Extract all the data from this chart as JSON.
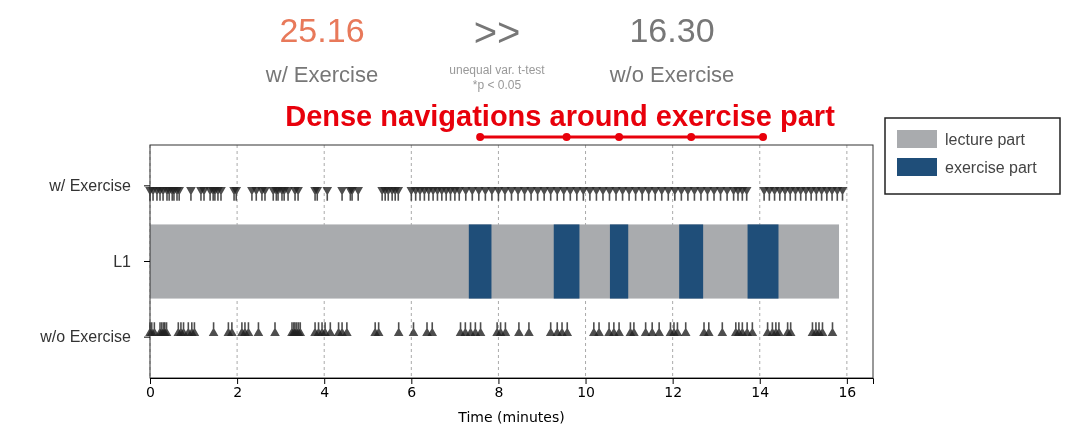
{
  "chart_data": {
    "type": "scatter",
    "orientation": "horizontal",
    "xlabel": "Time (minutes)",
    "xlim": [
      0,
      16.6
    ],
    "xticks": [
      0,
      2,
      4,
      6,
      8,
      10,
      12,
      14,
      16
    ],
    "categories": [
      "w/ Exercise",
      "L1",
      "w/o Exercise"
    ],
    "grid": "x",
    "legend": "top right",
    "marker": "triangle",
    "annotations": [
      "25.16",
      "w/ Exercise",
      ">>",
      "unequal var. t-test",
      "*p < 0.05",
      "16.30",
      "w/o Exercise",
      "Dense navigations around exercise part"
    ],
    "bands": [
      {
        "axis": "x",
        "from": 0,
        "to": 15.82,
        "label": "lecture part",
        "color": "#a9abae"
      },
      {
        "axis": "x",
        "from": 7.32,
        "to": 7.84,
        "label": "exercise part",
        "color": "#1f4e79"
      },
      {
        "axis": "x",
        "from": 9.27,
        "to": 9.86,
        "color": "#1f4e79"
      },
      {
        "axis": "x",
        "from": 10.56,
        "to": 10.98,
        "color": "#1f4e79"
      },
      {
        "axis": "x",
        "from": 12.15,
        "to": 12.7,
        "color": "#1f4e79"
      },
      {
        "axis": "x",
        "from": 13.72,
        "to": 14.43,
        "color": "#1f4e79"
      }
    ],
    "series": [
      {
        "color": "#222222",
        "values": [
          0,
          0.07,
          0.16,
          0.23,
          0.3,
          0.39,
          0.44,
          0.51,
          0.55,
          0.62,
          0.67,
          0.94,
          1.17,
          1.24,
          1.38,
          1.45,
          1.49,
          1.56,
          1.63,
          1.93,
          1.98,
          2.34,
          2.44,
          2.57,
          2.64,
          2.83,
          2.9,
          2.94,
          3.03,
          3.08,
          3.17,
          3.33,
          3.4,
          3.79,
          3.84,
          4.07,
          4.41,
          4.6,
          4.64,
          4.78,
          5.33,
          5.4,
          5.47,
          5.56,
          5.63,
          5.7,
          6.0,
          6.1,
          6.2,
          6.3,
          6.4,
          6.5,
          6.6,
          6.7,
          6.8,
          6.9,
          7.0,
          7.1,
          7.25,
          7.4,
          7.55,
          7.7,
          7.85,
          8.0,
          8.15,
          8.3,
          8.45,
          8.6,
          8.75,
          8.9,
          9.05,
          9.2,
          9.35,
          9.5,
          9.65,
          9.8,
          9.95,
          10.1,
          10.25,
          10.4,
          10.55,
          10.7,
          10.85,
          11.0,
          11.15,
          11.3,
          11.45,
          11.6,
          11.75,
          11.9,
          12.05,
          12.2,
          12.35,
          12.5,
          12.65,
          12.8,
          12.95,
          13.1,
          13.25,
          13.4,
          13.5,
          13.6,
          13.7,
          14.1,
          14.22,
          14.34,
          14.46,
          14.58,
          14.7,
          14.82,
          14.94,
          15.06,
          15.18,
          15.3,
          15.42,
          15.54,
          15.66,
          15.78,
          15.9
        ],
        "x": [
          "w/ Exercise",
          "w/ Exercise",
          "w/ Exercise",
          "w/ Exercise",
          "w/ Exercise",
          "w/ Exercise",
          "w/ Exercise",
          "w/ Exercise",
          "w/ Exercise",
          "w/ Exercise",
          "w/ Exercise",
          "w/ Exercise",
          "w/ Exercise",
          "w/ Exercise",
          "w/ Exercise",
          "w/ Exercise",
          "w/ Exercise",
          "w/ Exercise",
          "w/ Exercise",
          "w/ Exercise",
          "w/ Exercise",
          "w/ Exercise",
          "w/ Exercise",
          "w/ Exercise",
          "w/ Exercise",
          "w/ Exercise",
          "w/ Exercise",
          "w/ Exercise",
          "w/ Exercise",
          "w/ Exercise",
          "w/ Exercise",
          "w/ Exercise",
          "w/ Exercise",
          "w/ Exercise",
          "w/ Exercise",
          "w/ Exercise",
          "w/ Exercise",
          "w/ Exercise",
          "w/ Exercise",
          "w/ Exercise",
          "w/ Exercise",
          "w/ Exercise",
          "w/ Exercise",
          "w/ Exercise",
          "w/ Exercise",
          "w/ Exercise",
          "w/ Exercise",
          "w/ Exercise",
          "w/ Exercise",
          "w/ Exercise",
          "w/ Exercise",
          "w/ Exercise",
          "w/ Exercise",
          "w/ Exercise",
          "w/ Exercise",
          "w/ Exercise",
          "w/ Exercise",
          "w/ Exercise",
          "w/ Exercise",
          "w/ Exercise",
          "w/ Exercise",
          "w/ Exercise",
          "w/ Exercise",
          "w/ Exercise",
          "w/ Exercise",
          "w/ Exercise",
          "w/ Exercise",
          "w/ Exercise",
          "w/ Exercise",
          "w/ Exercise",
          "w/ Exercise",
          "w/ Exercise",
          "w/ Exercise",
          "w/ Exercise",
          "w/ Exercise",
          "w/ Exercise",
          "w/ Exercise",
          "w/ Exercise",
          "w/ Exercise",
          "w/ Exercise",
          "w/ Exercise",
          "w/ Exercise",
          "w/ Exercise",
          "w/ Exercise",
          "w/ Exercise",
          "w/ Exercise",
          "w/ Exercise",
          "w/ Exercise",
          "w/ Exercise",
          "w/ Exercise",
          "w/ Exercise",
          "w/ Exercise",
          "w/ Exercise",
          "w/ Exercise",
          "w/ Exercise",
          "w/ Exercise",
          "w/ Exercise",
          "w/ Exercise",
          "w/ Exercise",
          "w/ Exercise",
          "w/ Exercise",
          "w/ Exercise",
          "w/ Exercise",
          "w/ Exercise",
          "w/ Exercise",
          "w/ Exercise",
          "w/ Exercise",
          "w/ Exercise",
          "w/ Exercise",
          "w/ Exercise",
          "w/ Exercise",
          "w/ Exercise",
          "w/ Exercise",
          "w/ Exercise",
          "w/ Exercise",
          "w/ Exercise",
          "w/ Exercise",
          "w/ Exercise",
          "w/ Exercise"
        ]
      },
      {
        "color": "#222222",
        "values": [
          0,
          0.04,
          0.1,
          0.23,
          0.27,
          0.31,
          0.34,
          0.38,
          0.65,
          0.71,
          0.77,
          0.88,
          0.96,
          1.02,
          1.46,
          1.8,
          1.88,
          2.11,
          2.18,
          2.26,
          2.49,
          2.87,
          3.26,
          3.3,
          3.33,
          3.37,
          3.41,
          3.45,
          3.79,
          3.87,
          3.95,
          4.02,
          4.14,
          4.33,
          4.41,
          4.52,
          5.17,
          5.25,
          5.71,
          6.05,
          6.36,
          6.48,
          7.13,
          7.24,
          7.36,
          7.47,
          7.59,
          7.97,
          8.05,
          8.16,
          8.47,
          8.7,
          9.2,
          9.35,
          9.46,
          9.58,
          10.19,
          10.31,
          10.54,
          10.65,
          10.77,
          11.03,
          11.11,
          11.38,
          11.53,
          11.69,
          11.95,
          12.03,
          12.11,
          12.3,
          12.72,
          12.83,
          13.14,
          13.45,
          13.52,
          13.6,
          13.71,
          13.83,
          14.18,
          14.29,
          14.37,
          14.44,
          14.64,
          14.71,
          15.21,
          15.29,
          15.36,
          15.44,
          15.67
        ],
        "x": [
          "w/o Exercise",
          "w/o Exercise",
          "w/o Exercise",
          "w/o Exercise",
          "w/o Exercise",
          "w/o Exercise",
          "w/o Exercise",
          "w/o Exercise",
          "w/o Exercise",
          "w/o Exercise",
          "w/o Exercise",
          "w/o Exercise",
          "w/o Exercise",
          "w/o Exercise",
          "w/o Exercise",
          "w/o Exercise",
          "w/o Exercise",
          "w/o Exercise",
          "w/o Exercise",
          "w/o Exercise",
          "w/o Exercise",
          "w/o Exercise",
          "w/o Exercise",
          "w/o Exercise",
          "w/o Exercise",
          "w/o Exercise",
          "w/o Exercise",
          "w/o Exercise",
          "w/o Exercise",
          "w/o Exercise",
          "w/o Exercise",
          "w/o Exercise",
          "w/o Exercise",
          "w/o Exercise",
          "w/o Exercise",
          "w/o Exercise",
          "w/o Exercise",
          "w/o Exercise",
          "w/o Exercise",
          "w/o Exercise",
          "w/o Exercise",
          "w/o Exercise",
          "w/o Exercise",
          "w/o Exercise",
          "w/o Exercise",
          "w/o Exercise",
          "w/o Exercise",
          "w/o Exercise",
          "w/o Exercise",
          "w/o Exercise",
          "w/o Exercise",
          "w/o Exercise",
          "w/o Exercise",
          "w/o Exercise",
          "w/o Exercise",
          "w/o Exercise",
          "w/o Exercise",
          "w/o Exercise",
          "w/o Exercise",
          "w/o Exercise",
          "w/o Exercise",
          "w/o Exercise",
          "w/o Exercise",
          "w/o Exercise",
          "w/o Exercise",
          "w/o Exercise",
          "w/o Exercise",
          "w/o Exercise",
          "w/o Exercise",
          "w/o Exercise",
          "w/o Exercise",
          "w/o Exercise",
          "w/o Exercise",
          "w/o Exercise",
          "w/o Exercise",
          "w/o Exercise",
          "w/o Exercise",
          "w/o Exercise",
          "w/o Exercise",
          "w/o Exercise",
          "w/o Exercise",
          "w/o Exercise",
          "w/o Exercise",
          "w/o Exercise",
          "w/o Exercise",
          "w/o Exercise",
          "w/o Exercise",
          "w/o Exercise",
          "w/o Exercise"
        ]
      }
    ]
  }
}
